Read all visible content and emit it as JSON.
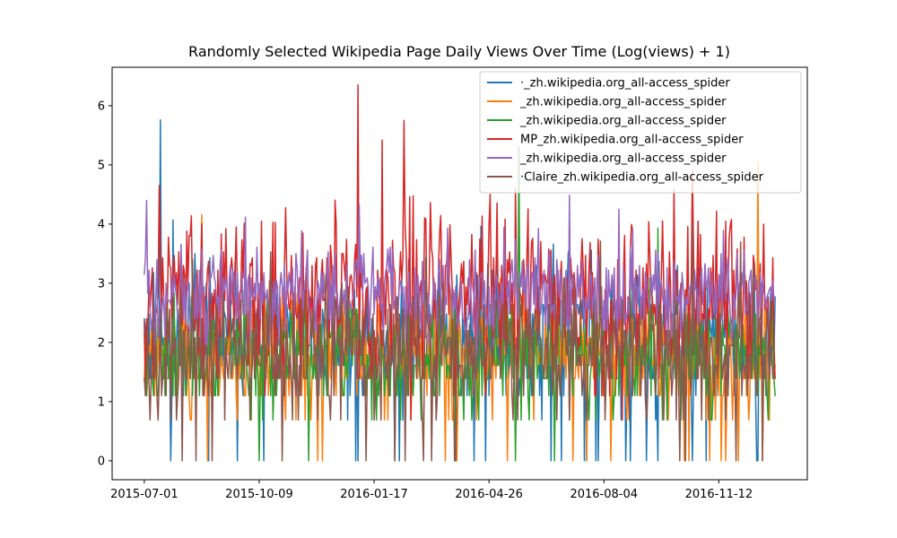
{
  "chart_data": {
    "type": "line",
    "title": "Randomly Selected Wikipedia Page Daily Views Over Time (Log(views) + 1)",
    "xlabel": "",
    "ylabel": "",
    "x_start": "2015-07-01",
    "x_end": "2016-12-31",
    "xlim": [
      "2015-06-03",
      "2017-01-28"
    ],
    "ylim": [
      -0.32,
      6.65
    ],
    "x_ticks": [
      "2015-07-01",
      "2015-10-09",
      "2016-01-17",
      "2016-04-26",
      "2016-08-04",
      "2016-11-12"
    ],
    "y_ticks": [
      0,
      1,
      2,
      3,
      4,
      5,
      6
    ],
    "grid": false,
    "legend_position": "top-right",
    "series": [
      {
        "name": "·_zh.wikipedia.org_all-access_spider",
        "color": "#1f77b4",
        "base": 2.0,
        "spread": 0.55,
        "seed": 11,
        "zero_rate": 0.05,
        "spikes": [
          [
            "2015-07-15",
            5.76
          ],
          [
            "2015-07-26",
            4.07
          ]
        ]
      },
      {
        "name": "_zh.wikipedia.org_all-access_spider",
        "color": "#ff7f0e",
        "base": 1.75,
        "spread": 0.5,
        "seed": 23,
        "zero_rate": 0.02,
        "spikes": [
          [
            "2015-08-20",
            4.16
          ],
          [
            "2016-12-16",
            5.05
          ]
        ]
      },
      {
        "name": "_zh.wikipedia.org_all-access_spider",
        "color": "#2ca02c",
        "base": 1.75,
        "spread": 0.5,
        "seed": 37,
        "zero_rate": 0.015,
        "spikes": [
          [
            "2016-05-22",
            5.3
          ],
          [
            "2016-09-20",
            3.93
          ]
        ]
      },
      {
        "name": "MP_zh.wikipedia.org_all-access_spider",
        "color": "#d62728",
        "base": 2.75,
        "spread": 0.75,
        "seed": 53,
        "zero_rate": 0.0,
        "spikes": [
          [
            "2016-01-03",
            6.35
          ],
          [
            "2016-02-12",
            5.75
          ],
          [
            "2015-07-14",
            4.65
          ],
          [
            "2016-01-24",
            5.42
          ]
        ]
      },
      {
        "name": "_zh.wikipedia.org_all-access_spider",
        "color": "#9467bd",
        "base": 2.75,
        "spread": 0.4,
        "seed": 71,
        "zero_rate": 0.0,
        "spikes": [
          [
            "2015-07-03",
            4.4
          ],
          [
            "2015-09-27",
            4.12
          ]
        ]
      },
      {
        "name": "·Claire_zh.wikipedia.org_all-access_spider",
        "color": "#8c564b",
        "base": 1.8,
        "spread": 0.55,
        "seed": 97,
        "zero_rate": 0.035,
        "spikes": [
          [
            "2016-10-20",
            4.0
          ],
          [
            "2016-12-01",
            3.7
          ]
        ]
      }
    ]
  }
}
